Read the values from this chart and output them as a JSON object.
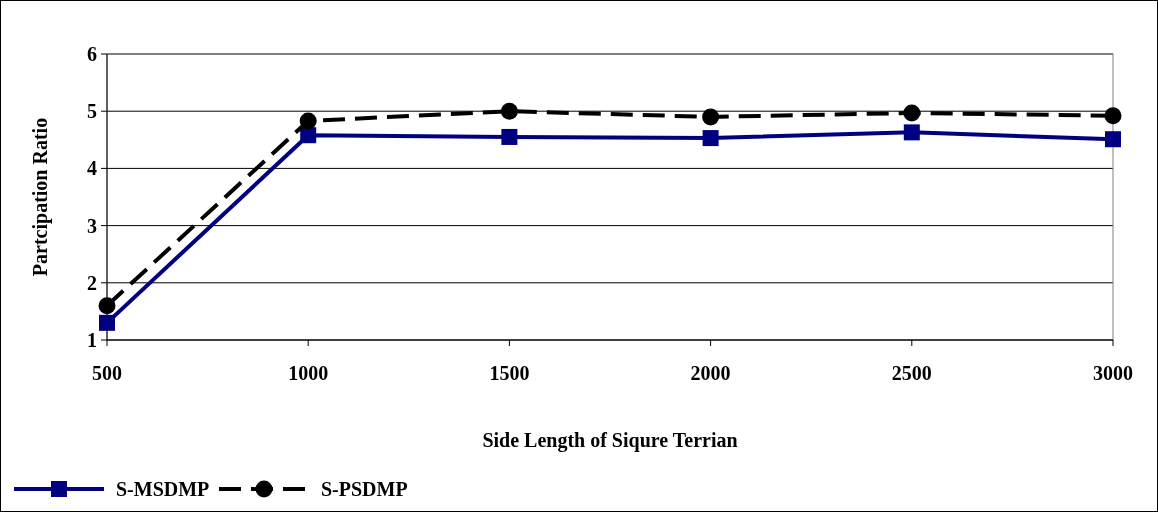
{
  "chart_data": {
    "type": "line",
    "xlabel": "Side Length of Siqure Terrian",
    "ylabel": "Partcipation Ratio",
    "x": [
      500,
      1000,
      1500,
      2000,
      2500,
      3000
    ],
    "xlim": [
      500,
      3000
    ],
    "xticks": [
      500,
      1000,
      1500,
      2000,
      2500,
      3000
    ],
    "ylim": [
      1,
      6
    ],
    "yticks": [
      1,
      2,
      3,
      4,
      5,
      6
    ],
    "grid": "y",
    "legend": "bottom left",
    "series": [
      {
        "name": "S-MSDMP",
        "color": "#000080",
        "marker": "square",
        "line_style": "solid",
        "values": [
          1.3,
          4.58,
          4.55,
          4.53,
          4.63,
          4.51
        ]
      },
      {
        "name": "S-PSDMP",
        "color": "#000000",
        "marker": "circle",
        "line_style": "dashed",
        "values": [
          1.6,
          4.83,
          5.0,
          4.9,
          4.97,
          4.92
        ]
      }
    ]
  }
}
